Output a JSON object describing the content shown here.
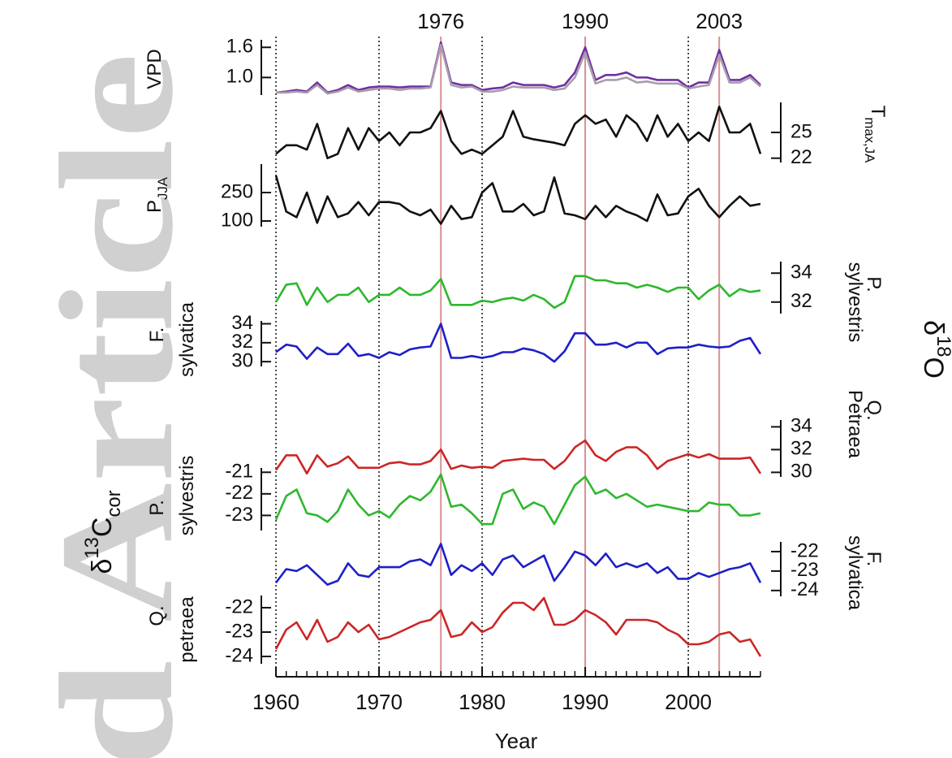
{
  "chart_data": {
    "type": "line",
    "watermark": "d Article",
    "xlabel": "Year",
    "xlim": [
      1960,
      2007
    ],
    "xticks": [
      1960,
      1970,
      1980,
      1990,
      2000
    ],
    "vlines": [
      1960,
      1970,
      1980,
      1990,
      2000
    ],
    "highlights": [
      1976,
      1990,
      2003
    ],
    "highlight_color": "#d99090",
    "left_group_label": [
      {
        "text": "δ"
      },
      {
        "text": "13",
        "shift": "super"
      },
      {
        "text": "C"
      },
      {
        "text": "cor",
        "shift": "sub"
      }
    ],
    "right_group_label": [
      {
        "text": "δ"
      },
      {
        "text": "18",
        "shift": "super"
      },
      {
        "text": "O"
      }
    ],
    "x": [
      1960,
      1961,
      1962,
      1963,
      1964,
      1965,
      1966,
      1967,
      1968,
      1969,
      1970,
      1971,
      1972,
      1973,
      1974,
      1975,
      1976,
      1977,
      1978,
      1979,
      1980,
      1981,
      1982,
      1983,
      1984,
      1985,
      1986,
      1987,
      1988,
      1989,
      1990,
      1991,
      1992,
      1993,
      1994,
      1995,
      1996,
      1997,
      1998,
      1999,
      2000,
      2001,
      2002,
      2003,
      2004,
      2005,
      2006,
      2007
    ],
    "panels": [
      {
        "axis": "left",
        "label": [
          [
            {
              "text": "VPD"
            }
          ]
        ],
        "ylim": [
          0.65,
          1.75
        ],
        "yticks": [
          1.6,
          {
            "value": 1,
            "label": "1.0"
          }
        ],
        "series": [
          {
            "color": "#7030a0",
            "values": [
              0.7,
              0.72,
              0.75,
              0.72,
              0.9,
              0.7,
              0.75,
              0.85,
              0.75,
              0.8,
              0.82,
              0.82,
              0.8,
              0.82,
              0.82,
              0.82,
              1.7,
              0.9,
              0.85,
              0.85,
              0.75,
              0.78,
              0.8,
              0.9,
              0.85,
              0.85,
              0.85,
              0.8,
              0.85,
              1.1,
              1.6,
              0.95,
              1.05,
              1.05,
              1.1,
              1.0,
              1.0,
              0.95,
              0.95,
              0.95,
              0.8,
              0.9,
              0.9,
              1.55,
              0.95,
              0.95,
              1.05,
              0.85
            ]
          },
          {
            "color": "#a89cae",
            "values": [
              0.7,
              0.7,
              0.72,
              0.7,
              0.85,
              0.68,
              0.72,
              0.8,
              0.72,
              0.75,
              0.78,
              0.78,
              0.75,
              0.78,
              0.78,
              0.8,
              1.65,
              0.85,
              0.8,
              0.82,
              0.72,
              0.72,
              0.75,
              0.82,
              0.8,
              0.8,
              0.8,
              0.75,
              0.78,
              1.0,
              1.5,
              0.88,
              0.95,
              0.95,
              1.0,
              0.9,
              0.92,
              0.88,
              0.88,
              0.88,
              0.78,
              0.82,
              0.85,
              1.45,
              0.9,
              0.9,
              1.0,
              0.82
            ]
          }
        ]
      },
      {
        "axis": "right",
        "label": [
          [
            {
              "text": "T"
            },
            {
              "text": "max,JA",
              "shift": "sub"
            }
          ]
        ],
        "ylim": [
          21.5,
          28.5
        ],
        "yticks": [
          25,
          22
        ],
        "series": [
          {
            "color": "#111111",
            "values": [
              22.5,
              23.5,
              23.5,
              23,
              26,
              22,
              22.5,
              25.5,
              23,
              25.5,
              24,
              25,
              23.5,
              25,
              25,
              25.5,
              27.5,
              24,
              22.5,
              23,
              22.5,
              23.5,
              24.5,
              27.5,
              24.5,
              24.2,
              24,
              23.8,
              23.5,
              26,
              27,
              26,
              26.5,
              24.5,
              27,
              26,
              24,
              27,
              24.5,
              26,
              24,
              25,
              24,
              28,
              25,
              25,
              26,
              22.5
            ]
          }
        ]
      },
      {
        "axis": "left",
        "label": [
          [
            {
              "text": "P"
            },
            {
              "text": "JJA",
              "shift": "sub"
            }
          ]
        ],
        "ylim": [
          70,
          400
        ],
        "yticks": [
          250,
          100
        ],
        "series": [
          {
            "color": "#111111",
            "values": [
              340,
              150,
              120,
              250,
              90,
              230,
              120,
              140,
              200,
              130,
              200,
              200,
              190,
              150,
              130,
              160,
              85,
              180,
              110,
              120,
              250,
              300,
              150,
              150,
              190,
              130,
              150,
              330,
              140,
              130,
              110,
              180,
              120,
              180,
              150,
              130,
              100,
              240,
              130,
              140,
              230,
              270,
              180,
              120,
              180,
              230,
              180,
              190
            ]
          }
        ]
      },
      {
        "axis": "right",
        "label": [
          [
            {
              "text": "P."
            }
          ],
          [
            {
              "text": "sylvestris"
            }
          ]
        ],
        "ylim": [
          31.2,
          34.8
        ],
        "yticks": [
          34,
          32
        ],
        "series": [
          {
            "color": "#2eb82e",
            "values": [
              32,
              33.2,
              33.3,
              31.8,
              33,
              32,
              32.5,
              32.5,
              33,
              32,
              32.5,
              32.5,
              33,
              32.5,
              32.5,
              32.8,
              33.6,
              31.8,
              31.8,
              31.8,
              32.1,
              32,
              32.2,
              32.3,
              32.1,
              32.5,
              32.2,
              31.6,
              32,
              33.8,
              33.8,
              33.5,
              33.5,
              33.3,
              33.3,
              33,
              33.2,
              33,
              32.7,
              33,
              33,
              32.2,
              32.8,
              33.2,
              32.4,
              32.9,
              32.7,
              32.8
            ]
          }
        ]
      },
      {
        "axis": "left",
        "label": [
          [
            {
              "text": "F."
            }
          ],
          [
            {
              "text": "sylvatica"
            }
          ]
        ],
        "ylim": [
          29.5,
          34.3
        ],
        "yticks": [
          34,
          32,
          30
        ],
        "series": [
          {
            "color": "#1f1fc8",
            "values": [
              31,
              31.8,
              31.6,
              30.3,
              31.5,
              30.8,
              30.8,
              31.9,
              30.6,
              30.8,
              30.4,
              31,
              30.7,
              31.3,
              31.5,
              31.6,
              34,
              30.4,
              30.4,
              30.6,
              30.4,
              30.6,
              31,
              31,
              31.4,
              31.2,
              30.8,
              30,
              31.1,
              33,
              33,
              31.8,
              31.8,
              32,
              31.5,
              32,
              32,
              30.8,
              31.4,
              31.5,
              31.5,
              31.8,
              31.6,
              31.5,
              31.6,
              32.2,
              32.5,
              30.8
            ]
          }
        ]
      },
      {
        "axis": "right",
        "label": [
          [
            {
              "text": "Q."
            }
          ],
          [
            {
              "text": "Petraea"
            }
          ]
        ],
        "ylim": [
          29.6,
          34.6
        ],
        "yticks": [
          34,
          32,
          30
        ],
        "series": [
          {
            "color": "#cc2626",
            "values": [
              30.2,
              31.5,
              31.5,
              29.9,
              31.5,
              30.5,
              30.8,
              31.4,
              30.4,
              30.4,
              30.4,
              30.8,
              30.9,
              30.7,
              30.7,
              31,
              32,
              30.3,
              30.6,
              30.4,
              30.5,
              30.4,
              31,
              31.1,
              31.2,
              31.1,
              31.1,
              30.3,
              31,
              32.2,
              32.8,
              31.5,
              31,
              31.8,
              32.2,
              32.2,
              31.5,
              30.3,
              31,
              31.3,
              31.6,
              31.3,
              31.6,
              31.2,
              31.2,
              31.2,
              31.3,
              29.9
            ]
          }
        ]
      },
      {
        "axis": "left",
        "label": [
          [
            {
              "text": "P."
            }
          ],
          [
            {
              "text": "sylvestris"
            }
          ]
        ],
        "ylim": [
          -23.7,
          -20.8
        ],
        "yticks": [
          -21,
          -22,
          -23
        ],
        "series": [
          {
            "color": "#2eb82e",
            "values": [
              -23.2,
              -22.1,
              -21.8,
              -22.9,
              -23,
              -23.3,
              -22.8,
              -21.8,
              -22.5,
              -23,
              -22.8,
              -23.1,
              -22.5,
              -22.1,
              -22.3,
              -21.9,
              -21.1,
              -22.6,
              -22.5,
              -22.9,
              -23.4,
              -23.4,
              -22,
              -21.8,
              -22.7,
              -22.4,
              -22.6,
              -23.4,
              -22.5,
              -21.6,
              -21.2,
              -22,
              -21.8,
              -22.2,
              -22,
              -22.3,
              -22.6,
              -22.5,
              -22.6,
              -22.7,
              -22.8,
              -22.8,
              -22.4,
              -22.5,
              -22.5,
              -23,
              -23,
              -22.9
            ]
          }
        ]
      },
      {
        "axis": "right",
        "label": [
          [
            {
              "text": "F."
            }
          ],
          [
            {
              "text": "sylvatica"
            }
          ]
        ],
        "ylim": [
          -24.3,
          -21.5
        ],
        "yticks": [
          -22,
          -23,
          -24
        ],
        "series": [
          {
            "color": "#1f1fc8",
            "values": [
              -23.6,
              -22.9,
              -23,
              -22.7,
              -23.2,
              -23.7,
              -23.5,
              -22.6,
              -23.2,
              -23.3,
              -22.8,
              -22.8,
              -22.8,
              -22.5,
              -22.4,
              -22.7,
              -21.6,
              -23.2,
              -22.7,
              -23,
              -22.6,
              -23.2,
              -22.4,
              -22.2,
              -22.8,
              -22.5,
              -22.2,
              -23.5,
              -22.8,
              -22,
              -22.2,
              -22.7,
              -22.1,
              -22.8,
              -22.6,
              -22.8,
              -22.6,
              -23.1,
              -22.8,
              -23.4,
              -23.4,
              -23.1,
              -23.3,
              -23.1,
              -22.9,
              -22.8,
              -22.6,
              -23.6
            ]
          }
        ]
      },
      {
        "axis": "left",
        "label": [
          [
            {
              "text": "Q."
            }
          ],
          [
            {
              "text": "petraea"
            }
          ]
        ],
        "ylim": [
          -24.3,
          -21.5
        ],
        "yticks": [
          -22,
          -23,
          -24
        ],
        "series": [
          {
            "color": "#cc2626",
            "values": [
              -23.7,
              -22.9,
              -22.6,
              -23.3,
              -22.5,
              -23.4,
              -23.2,
              -22.6,
              -23,
              -22.7,
              -23.3,
              -23.2,
              -23,
              -22.8,
              -22.6,
              -22.5,
              -22.1,
              -23.2,
              -23.1,
              -22.6,
              -23,
              -22.8,
              -22.2,
              -21.8,
              -21.8,
              -22.1,
              -21.6,
              -22.7,
              -22.7,
              -22.5,
              -22.1,
              -22.3,
              -22.6,
              -23.1,
              -22.5,
              -22.5,
              -22.5,
              -22.6,
              -22.9,
              -23.1,
              -23.5,
              -23.5,
              -23.4,
              -23.1,
              -23,
              -23.4,
              -23.3,
              -24
            ]
          }
        ]
      }
    ]
  }
}
